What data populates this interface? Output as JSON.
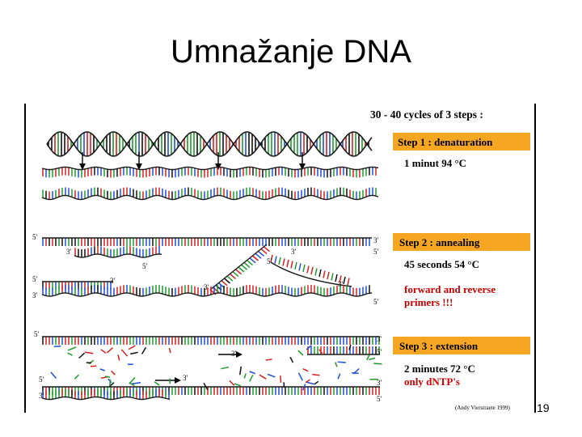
{
  "slide": {
    "title": "Umnažanje DNA",
    "page_number": "19"
  },
  "figure": {
    "header": "30 - 40 cycles of 3 steps :",
    "steps": [
      {
        "label": "Step 1 : denaturation",
        "detail": "1 minut 94 °C",
        "note": ""
      },
      {
        "label": "Step 2 : annealing",
        "detail": "45 seconds 54 °C",
        "note_line1": "forward and reverse",
        "note_line2": "primers !!!"
      },
      {
        "label": "Step 3 : extension",
        "detail": "2 minutes 72 °C",
        "note": "only dNTP's"
      }
    ],
    "credit": "(Andy Vierstraete 1999)",
    "strand_labels": {
      "five": "5'",
      "three": "3'"
    },
    "colors": {
      "step_banner": "#f5a623",
      "note_red": "#cc0000",
      "backbone": "#1a1a1a"
    }
  }
}
